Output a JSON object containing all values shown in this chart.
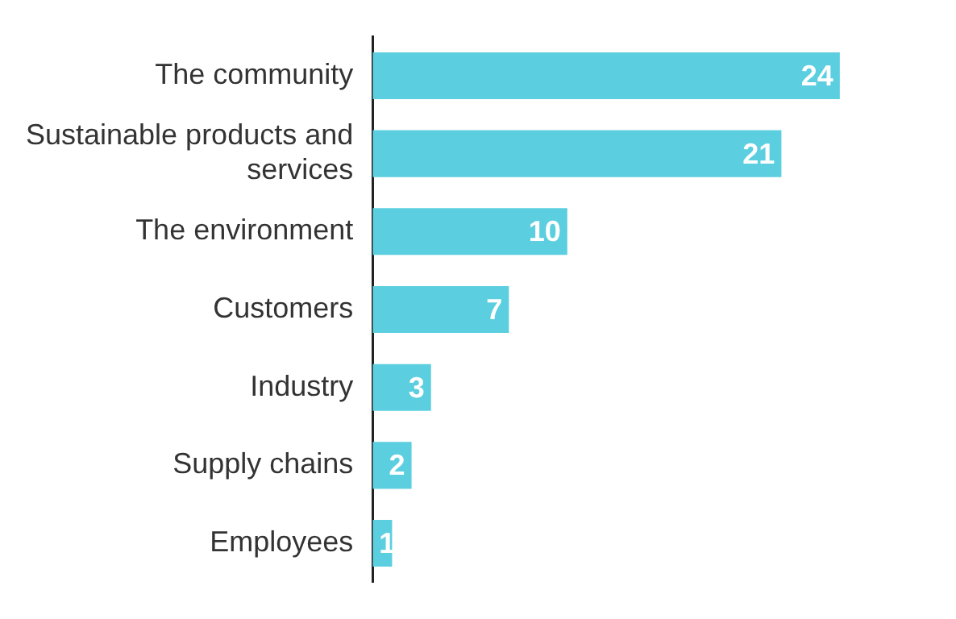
{
  "chart_data": {
    "type": "bar",
    "orientation": "horizontal",
    "categories": [
      "The community",
      "Sustainable products and services",
      "The environment",
      "Customers",
      "Industry",
      "Supply chains",
      "Employees"
    ],
    "values": [
      24,
      21,
      10,
      7,
      3,
      2,
      1
    ],
    "color": "#5bcfdf",
    "data_labels": true
  }
}
